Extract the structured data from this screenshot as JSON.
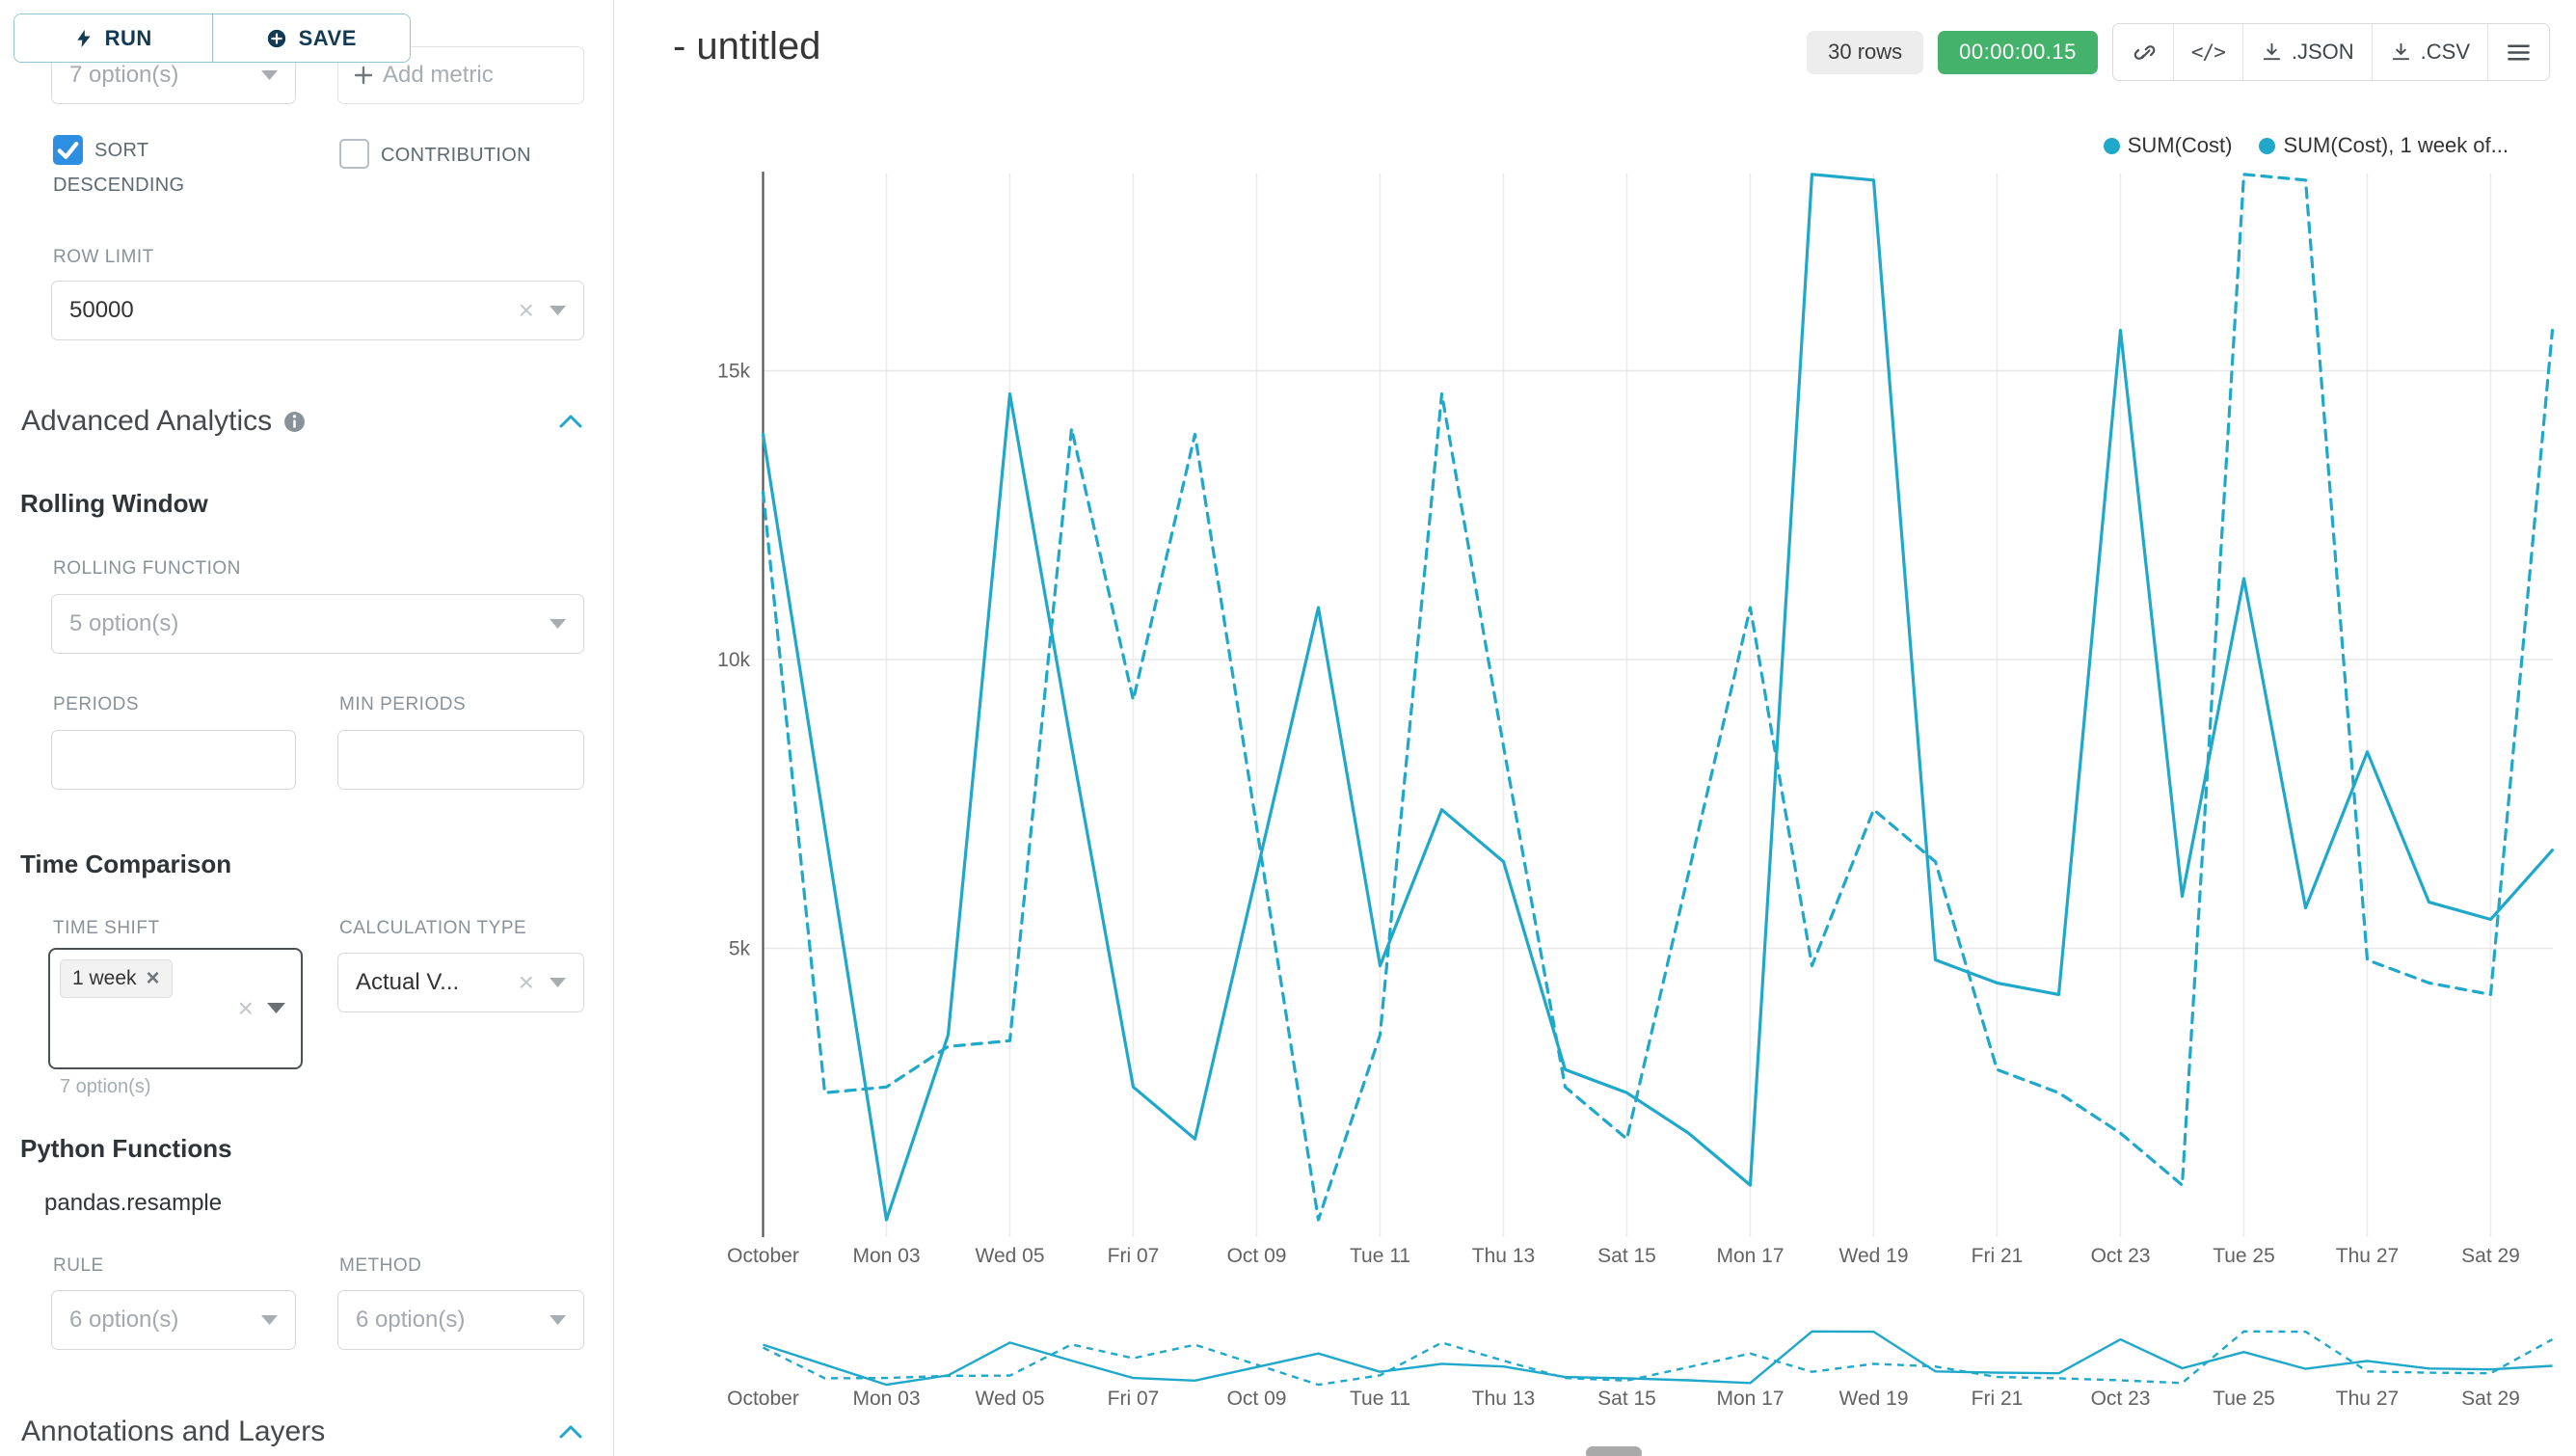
{
  "icons": {
    "close": "×",
    "plus": "+"
  },
  "colors": {
    "accent": "#20a7c9",
    "series": "#1FA8C9",
    "timer_bg": "#45b26b",
    "checkbox": "#2d8fe2"
  },
  "toolbar": {
    "run": "RUN",
    "save": "SAVE"
  },
  "controls": {
    "metric_select_value": "7 option(s)",
    "add_metric_label": "Add metric",
    "sort_descending_label": "SORT DESCENDING",
    "contribution_label": "CONTRIBUTION",
    "row_limit_label": "ROW LIMIT",
    "row_limit_value": "50000",
    "advanced_analytics_title": "Advanced Analytics",
    "rolling_window_title": "Rolling Window",
    "rolling_function_label": "ROLLING FUNCTION",
    "rolling_function_value": "5 option(s)",
    "periods_label": "PERIODS",
    "min_periods_label": "MIN PERIODS",
    "time_comparison_title": "Time Comparison",
    "time_shift_label": "TIME SHIFT",
    "time_shift_tag": "1 week",
    "time_shift_helper": "7 option(s)",
    "calculation_type_label": "CALCULATION TYPE",
    "calculation_type_value": "Actual V...",
    "python_functions_title": "Python Functions",
    "python_function_name": "pandas.resample",
    "rule_label": "RULE",
    "rule_value": "6 option(s)",
    "method_label": "METHOD",
    "method_value": "6 option(s)",
    "annotations_title": "Annotations and Layers"
  },
  "header": {
    "title": "- untitled",
    "row_count": "30 rows",
    "timer": "00:00:00.15",
    "json_label": ".JSON",
    "csv_label": ".CSV"
  },
  "chart_data": {
    "type": "line",
    "title": "- untitled",
    "num_points": 30,
    "x_tick_labels": [
      {
        "index": 0,
        "label": "October"
      },
      {
        "index": 2,
        "label": "Mon 03"
      },
      {
        "index": 4,
        "label": "Wed 05"
      },
      {
        "index": 6,
        "label": "Fri 07"
      },
      {
        "index": 8,
        "label": "Oct 09"
      },
      {
        "index": 10,
        "label": "Tue 11"
      },
      {
        "index": 12,
        "label": "Thu 13"
      },
      {
        "index": 14,
        "label": "Sat 15"
      },
      {
        "index": 16,
        "label": "Mon 17"
      },
      {
        "index": 18,
        "label": "Wed 19"
      },
      {
        "index": 20,
        "label": "Fri 21"
      },
      {
        "index": 22,
        "label": "Oct 23"
      },
      {
        "index": 24,
        "label": "Tue 25"
      },
      {
        "index": 26,
        "label": "Thu 27"
      },
      {
        "index": 28,
        "label": "Sat 29"
      }
    ],
    "y_ticks": [
      {
        "value": 5000,
        "label": "5k"
      },
      {
        "value": 10000,
        "label": "10k"
      },
      {
        "value": 15000,
        "label": "15k"
      }
    ],
    "ylim": [
      0,
      19000
    ],
    "grid": true,
    "legend_position": "top-right",
    "has_mini_preview": true,
    "series": [
      {
        "name": "SUM(Cost)",
        "legend_label": "SUM(Cost)",
        "style": "solid",
        "color": "#1FA8C9",
        "values": [
          13900,
          7100,
          300,
          3500,
          14600,
          8500,
          2600,
          1700,
          6300,
          10900,
          4700,
          7400,
          6500,
          2900,
          2500,
          1800,
          900,
          18400,
          18300,
          4800,
          4400,
          4200,
          15700,
          5900,
          11400,
          5700,
          8400,
          5800,
          5500,
          6700
        ]
      },
      {
        "name": "SUM(Cost), 1 week offset",
        "legend_label": "SUM(Cost), 1 week of...",
        "style": "dashed",
        "color": "#1FA8C9",
        "values": [
          12900,
          2500,
          2600,
          3300,
          3400,
          14000,
          9300,
          13900,
          7100,
          300,
          3500,
          14600,
          8500,
          2600,
          1700,
          6300,
          10900,
          4700,
          7400,
          6500,
          2900,
          2500,
          1800,
          900,
          18400,
          18300,
          4800,
          4400,
          4200,
          15700
        ]
      }
    ]
  }
}
